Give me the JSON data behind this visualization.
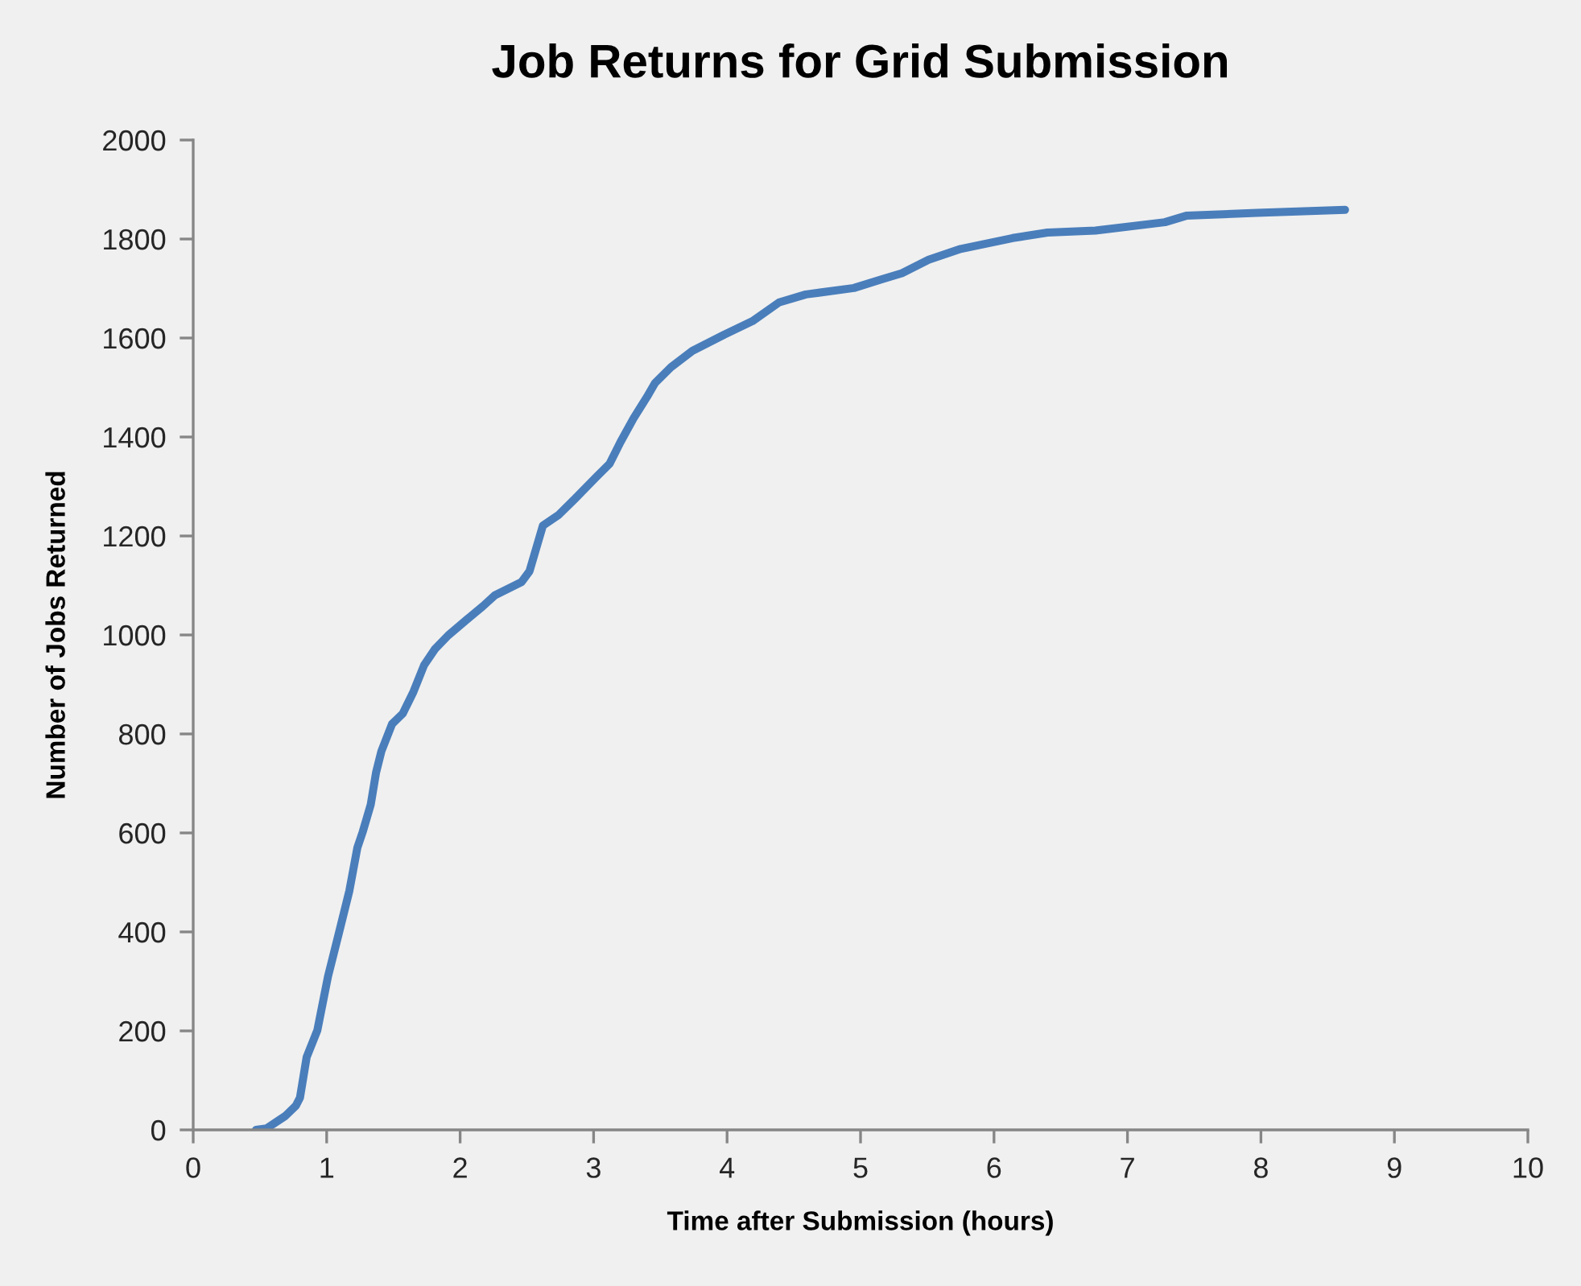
{
  "chart_data": {
    "type": "line",
    "title": "Job Returns for Grid Submission",
    "xlabel": "Time after Submission (hours)",
    "ylabel": "Number of Jobs Returned",
    "x": [
      0.47,
      0.55,
      0.69,
      0.77,
      0.8,
      0.85,
      0.93,
      1.01,
      1.09,
      1.17,
      1.23,
      1.27,
      1.33,
      1.37,
      1.41,
      1.49,
      1.57,
      1.65,
      1.73,
      1.81,
      1.91,
      2.05,
      2.17,
      2.26,
      2.46,
      2.52,
      2.62,
      2.74,
      2.86,
      3.02,
      3.12,
      3.2,
      3.3,
      3.4,
      3.46,
      3.58,
      3.74,
      3.98,
      4.19,
      4.39,
      4.59,
      4.95,
      5.15,
      5.31,
      5.51,
      5.75,
      6.14,
      6.4,
      6.76,
      7.28,
      7.44,
      7.97,
      8.63
    ],
    "values": [
      0,
      3,
      28,
      49,
      65,
      147,
      201,
      310,
      396,
      483,
      570,
      602,
      657,
      722,
      765,
      820,
      841,
      885,
      939,
      971,
      999,
      1031,
      1058,
      1080,
      1107,
      1129,
      1221,
      1243,
      1275,
      1319,
      1346,
      1389,
      1438,
      1481,
      1509,
      1541,
      1574,
      1607,
      1634,
      1672,
      1688,
      1701,
      1718,
      1731,
      1758,
      1780,
      1802,
      1813,
      1817,
      1834,
      1847,
      1853,
      1859
    ],
    "color": "#4a7ebb",
    "xlim": [
      0,
      10
    ],
    "ylim": [
      0,
      2000
    ],
    "xticks": [
      0,
      1,
      2,
      3,
      4,
      5,
      6,
      7,
      8,
      9,
      10
    ],
    "yticks": [
      0,
      200,
      400,
      600,
      800,
      1000,
      1200,
      1400,
      1600,
      1800,
      2000
    ],
    "marker": "none",
    "line_style": "solid",
    "grid": false
  }
}
